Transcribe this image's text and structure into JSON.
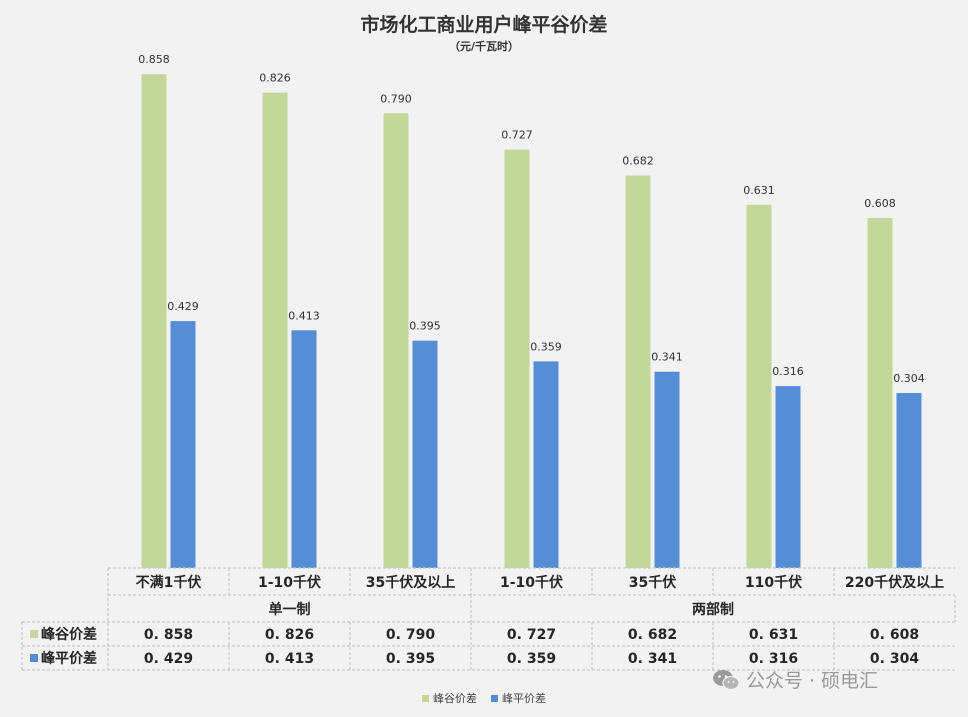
{
  "title": "市场化工商业用户峰平谷价差",
  "subtitle": "（元/千瓦时）",
  "watermark": "公众号 · 硕电汇",
  "colors": {
    "peak_valley": "#c4d79b",
    "peak_flat": "#558ed5"
  },
  "chart_data": {
    "type": "bar",
    "categories": [
      "不满1千伏",
      "1-10千伏",
      "35千伏及以上",
      "1-10千伏",
      "35千伏",
      "110千伏",
      "220千伏及以上"
    ],
    "groups": [
      {
        "label": "单一制",
        "span": 3
      },
      {
        "label": "两部制",
        "span": 4
      }
    ],
    "series": [
      {
        "name": "峰谷价差",
        "values": [
          0.858,
          0.826,
          0.79,
          0.727,
          0.682,
          0.631,
          0.608
        ],
        "labels": [
          "0.858",
          "0.826",
          "0.790",
          "0.727",
          "0.682",
          "0.631",
          "0.608"
        ],
        "table_labels": [
          "0. 858",
          "0. 826",
          "0. 790",
          "0. 727",
          "0. 682",
          "0. 631",
          "0. 608"
        ]
      },
      {
        "name": "峰平价差",
        "values": [
          0.429,
          0.413,
          0.395,
          0.359,
          0.341,
          0.316,
          0.304
        ],
        "labels": [
          "0.429",
          "0.413",
          "0.395",
          "0.359",
          "0.341",
          "0.316",
          "0.304"
        ],
        "table_labels": [
          "0. 429",
          "0. 413",
          "0. 395",
          "0. 359",
          "0. 341",
          "0. 316",
          "0. 304"
        ]
      }
    ],
    "ylim": [
      0,
      0.9
    ],
    "gridlines": false,
    "legend_position": "bottom",
    "data_table": true
  }
}
